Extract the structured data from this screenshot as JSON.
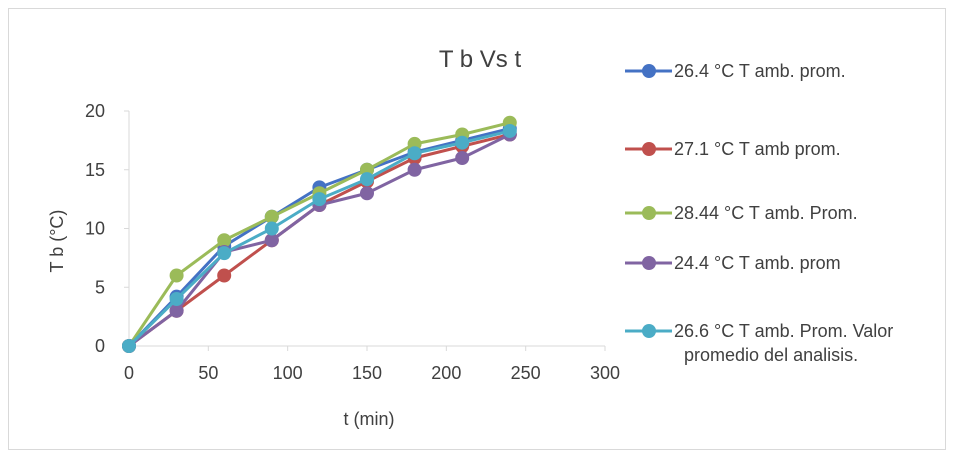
{
  "chart_data": {
    "type": "line",
    "title": "T b Vs t",
    "xlabel": "t (min)",
    "ylabel": "T b (°C)",
    "xlim": [
      0,
      300
    ],
    "ylim": [
      0,
      20
    ],
    "xticks": [
      0,
      50,
      100,
      150,
      200,
      250,
      300
    ],
    "yticks": [
      0,
      5,
      10,
      15,
      20
    ],
    "grid": false,
    "legend_position": "right",
    "x": [
      0,
      30,
      60,
      90,
      120,
      150,
      180,
      210,
      240
    ],
    "series": [
      {
        "name": "26.4 °C T amb. prom.",
        "color": "#4472C4",
        "values": [
          0,
          4.2,
          8.5,
          11,
          13.5,
          15,
          16.5,
          17.5,
          18.5
        ]
      },
      {
        "name": "27.1 °C  T amb prom.",
        "color": "#C0504D",
        "values": [
          0,
          3,
          6,
          9,
          12,
          14,
          16,
          17,
          18
        ]
      },
      {
        "name": "28.44 °C T amb. Prom.",
        "color": "#9BBB59",
        "values": [
          0,
          6,
          9,
          11,
          13,
          15,
          17.2,
          18,
          19
        ]
      },
      {
        "name": "24.4 °C T amb. prom",
        "color": "#8064A2",
        "values": [
          0,
          3,
          8,
          9,
          12,
          13,
          15,
          16,
          18
        ]
      },
      {
        "name": "26.6 °C T amb. Prom. Valor promedio del analisis.",
        "legend_lines": [
          "26.6 °C T amb. Prom. Valor",
          "promedio del analisis."
        ],
        "color": "#4BACC6",
        "values": [
          0,
          4,
          7.9,
          10,
          12.5,
          14.2,
          16.4,
          17.3,
          18.3
        ]
      }
    ]
  }
}
